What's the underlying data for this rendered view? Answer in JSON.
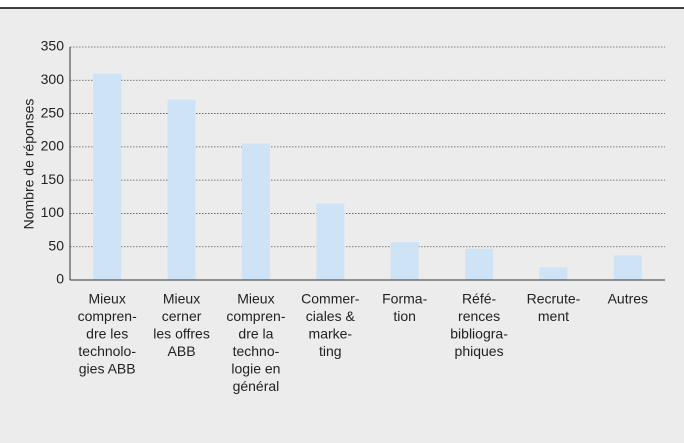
{
  "chart_data": {
    "type": "bar",
    "y_label": "Nombre de réponses",
    "categories": [
      [
        "Mieux",
        "compren-",
        "dre les",
        "technolo-",
        "gies ABB"
      ],
      [
        "Mieux",
        "cerner",
        "les offres",
        "ABB"
      ],
      [
        "Mieux",
        "compren-",
        "dre la",
        "techno-",
        "logie en",
        "général"
      ],
      [
        "Commer-",
        "ciales &",
        "marke-",
        "ting"
      ],
      [
        "Forma-",
        "tion"
      ],
      [
        "Réfé-",
        "rences",
        "bibliogra-",
        "phiques"
      ],
      [
        "Recrute-",
        "ment"
      ],
      [
        "Autres"
      ]
    ],
    "values": [
      310,
      271,
      205,
      115,
      57,
      47,
      19,
      37
    ],
    "color": "#cfe3f7",
    "ylim": [
      0,
      350
    ],
    "yticks": [
      0,
      50,
      100,
      150,
      200,
      250,
      300,
      350
    ],
    "grid": true
  }
}
